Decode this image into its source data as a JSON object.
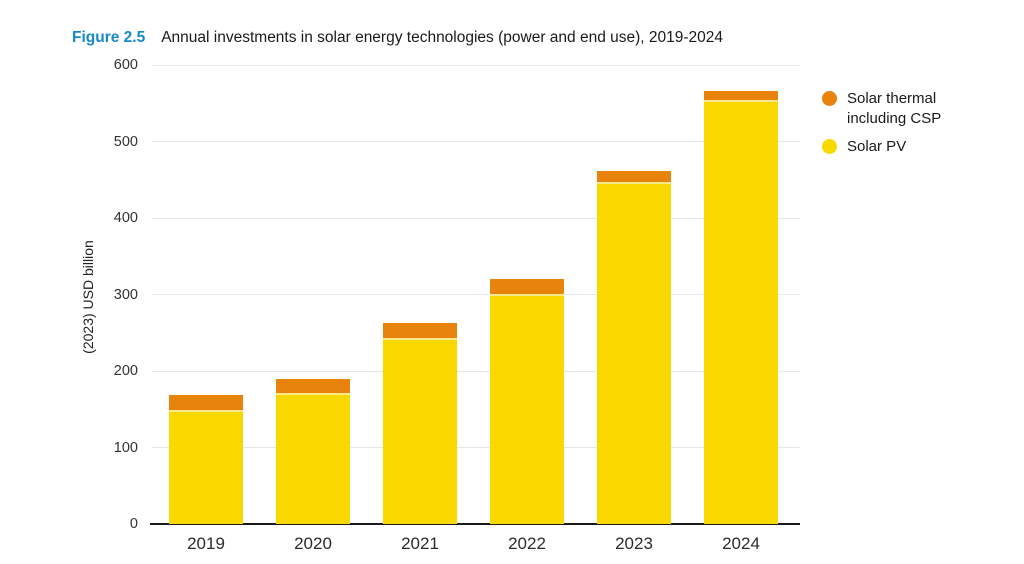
{
  "header": {
    "figure_label": "Figure 2.5",
    "title": "Annual investments in solar energy technologies (power and end use), 2019-2024"
  },
  "chart_data": {
    "type": "bar",
    "stacked": true,
    "title": "Annual investments in solar energy technologies (power and end use), 2019-2024",
    "categories": [
      "2019",
      "2020",
      "2021",
      "2022",
      "2023",
      "2024"
    ],
    "series": [
      {
        "name": "Solar PV",
        "color": "#F9D800",
        "values": [
          147,
          168,
          241,
          298,
          444,
          552
        ]
      },
      {
        "name": "Solar thermal including CSP",
        "color": "#E8830D",
        "values": [
          22,
          21,
          22,
          22,
          17,
          14
        ]
      }
    ],
    "stack_totals": [
      169,
      189,
      263,
      320,
      461,
      566
    ],
    "xlabel": "",
    "ylabel": "(2023) USD billion",
    "ylim": [
      0,
      600
    ],
    "yticks": [
      0,
      100,
      200,
      300,
      400,
      500,
      600
    ],
    "grid": "horizontal",
    "legend_position": "top-right",
    "legend": [
      {
        "label": "Solar thermal including CSP",
        "color": "#E8830D"
      },
      {
        "label": "Solar PV",
        "color": "#F9D800"
      }
    ]
  },
  "colors": {
    "figure_label_blue": "#1789C9",
    "solar_pv_yellow": "#F9D800",
    "solar_thermal_orange": "#E8830D",
    "axis_black": "#1a1a1a",
    "gridline_grey": "#e7e7e7"
  }
}
